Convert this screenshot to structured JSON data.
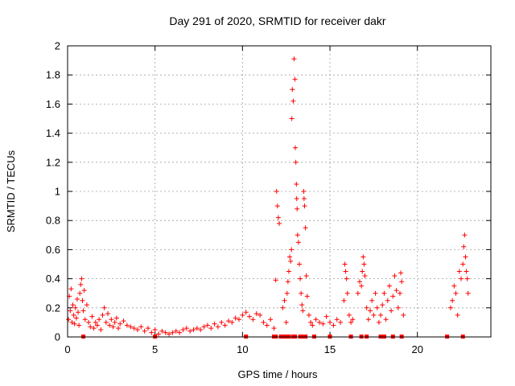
{
  "colors": {
    "series": "#ff0000",
    "frame": "#000000",
    "grid": "#a0a0a0"
  },
  "chart_data": {
    "type": "scatter",
    "title": "Day 291 of 2020, SRMTID for receiver dakr",
    "xlabel": "GPS time / hours",
    "ylabel": "SRMTID / TECUs",
    "xlim": [
      0,
      24.2
    ],
    "ylim": [
      0,
      2
    ],
    "grid": true,
    "x_ticks": [
      0,
      5,
      10,
      15,
      20
    ],
    "x_tick_labels": [
      "0",
      "5",
      "10",
      "15",
      "20"
    ],
    "y_ticks": [
      0,
      0.2,
      0.4,
      0.6,
      0.8,
      1,
      1.2,
      1.4,
      1.6,
      1.8,
      2
    ],
    "y_tick_labels": [
      "0",
      "0.2",
      "0.4",
      "0.6",
      "0.8",
      "1",
      "1.2",
      "1.4",
      "1.6",
      "1.8",
      "2"
    ],
    "series": [
      {
        "name": "SRMTID",
        "marker": "plus",
        "points": [
          [
            0.05,
            0.12
          ],
          [
            0.1,
            0.28
          ],
          [
            0.15,
            0.18
          ],
          [
            0.2,
            0.33
          ],
          [
            0.25,
            0.1
          ],
          [
            0.3,
            0.22
          ],
          [
            0.35,
            0.15
          ],
          [
            0.4,
            0.09
          ],
          [
            0.45,
            0.2
          ],
          [
            0.5,
            0.13
          ],
          [
            0.55,
            0.26
          ],
          [
            0.6,
            0.17
          ],
          [
            0.65,
            0.08
          ],
          [
            0.7,
            0.3
          ],
          [
            0.75,
            0.36
          ],
          [
            0.8,
            0.4
          ],
          [
            0.85,
            0.25
          ],
          [
            0.9,
            0.18
          ],
          [
            0.95,
            0.32
          ],
          [
            1.0,
            0.12
          ],
          [
            1.1,
            0.22
          ],
          [
            1.2,
            0.1
          ],
          [
            1.3,
            0.07
          ],
          [
            1.4,
            0.14
          ],
          [
            1.5,
            0.06
          ],
          [
            1.6,
            0.1
          ],
          [
            1.7,
            0.08
          ],
          [
            1.8,
            0.12
          ],
          [
            1.9,
            0.05
          ],
          [
            2.0,
            0.15
          ],
          [
            2.1,
            0.2
          ],
          [
            2.2,
            0.1
          ],
          [
            2.3,
            0.16
          ],
          [
            2.4,
            0.08
          ],
          [
            2.5,
            0.12
          ],
          [
            2.6,
            0.07
          ],
          [
            2.7,
            0.1
          ],
          [
            2.8,
            0.13
          ],
          [
            2.9,
            0.06
          ],
          [
            3.0,
            0.09
          ],
          [
            3.2,
            0.11
          ],
          [
            3.4,
            0.08
          ],
          [
            3.6,
            0.07
          ],
          [
            3.8,
            0.06
          ],
          [
            4.0,
            0.05
          ],
          [
            4.2,
            0.07
          ],
          [
            4.4,
            0.04
          ],
          [
            4.6,
            0.06
          ],
          [
            4.8,
            0.03
          ],
          [
            5.0,
            0.05
          ],
          [
            5.2,
            0.02
          ],
          [
            5.4,
            0.04
          ],
          [
            5.6,
            0.03
          ],
          [
            5.8,
            0.02
          ],
          [
            6.0,
            0.03
          ],
          [
            6.2,
            0.04
          ],
          [
            6.4,
            0.03
          ],
          [
            6.6,
            0.05
          ],
          [
            6.8,
            0.06
          ],
          [
            7.0,
            0.04
          ],
          [
            7.2,
            0.05
          ],
          [
            7.4,
            0.06
          ],
          [
            7.6,
            0.05
          ],
          [
            7.8,
            0.07
          ],
          [
            8.0,
            0.08
          ],
          [
            8.2,
            0.06
          ],
          [
            8.4,
            0.09
          ],
          [
            8.6,
            0.07
          ],
          [
            8.8,
            0.1
          ],
          [
            9.0,
            0.08
          ],
          [
            9.2,
            0.11
          ],
          [
            9.4,
            0.1
          ],
          [
            9.6,
            0.13
          ],
          [
            9.8,
            0.12
          ],
          [
            10.0,
            0.15
          ],
          [
            10.2,
            0.17
          ],
          [
            10.4,
            0.14
          ],
          [
            10.6,
            0.12
          ],
          [
            10.8,
            0.16
          ],
          [
            11.0,
            0.15
          ],
          [
            11.2,
            0.1
          ],
          [
            11.4,
            0.08
          ],
          [
            11.6,
            0.12
          ],
          [
            11.8,
            0.06
          ],
          [
            11.9,
            0.39
          ],
          [
            11.95,
            1.0
          ],
          [
            12.0,
            0.9
          ],
          [
            12.05,
            0.82
          ],
          [
            12.1,
            0.78
          ],
          [
            12.3,
            0.2
          ],
          [
            12.4,
            0.25
          ],
          [
            12.5,
            0.1
          ],
          [
            12.55,
            0.3
          ],
          [
            12.6,
            0.38
          ],
          [
            12.65,
            0.45
          ],
          [
            12.7,
            0.55
          ],
          [
            12.75,
            0.52
          ],
          [
            12.8,
            0.6
          ],
          [
            12.82,
            1.5
          ],
          [
            12.85,
            1.7
          ],
          [
            12.9,
            1.62
          ],
          [
            12.95,
            1.91
          ],
          [
            13.0,
            1.77
          ],
          [
            13.02,
            1.3
          ],
          [
            13.05,
            1.2
          ],
          [
            13.08,
            1.05
          ],
          [
            13.1,
            0.95
          ],
          [
            13.12,
            0.88
          ],
          [
            13.15,
            0.7
          ],
          [
            13.2,
            0.65
          ],
          [
            13.25,
            0.5
          ],
          [
            13.3,
            0.4
          ],
          [
            13.35,
            0.3
          ],
          [
            13.4,
            0.22
          ],
          [
            13.45,
            0.18
          ],
          [
            13.5,
            1.0
          ],
          [
            13.52,
            0.95
          ],
          [
            13.55,
            0.9
          ],
          [
            13.6,
            0.75
          ],
          [
            13.65,
            0.42
          ],
          [
            13.7,
            0.28
          ],
          [
            13.8,
            0.15
          ],
          [
            13.9,
            0.1
          ],
          [
            14.0,
            0.08
          ],
          [
            14.2,
            0.12
          ],
          [
            14.4,
            0.1
          ],
          [
            14.6,
            0.09
          ],
          [
            14.8,
            0.14
          ],
          [
            15.0,
            0.1
          ],
          [
            15.2,
            0.08
          ],
          [
            15.4,
            0.12
          ],
          [
            15.6,
            0.1
          ],
          [
            15.8,
            0.25
          ],
          [
            15.85,
            0.5
          ],
          [
            15.9,
            0.45
          ],
          [
            15.95,
            0.4
          ],
          [
            16.0,
            0.3
          ],
          [
            16.1,
            0.15
          ],
          [
            16.2,
            0.1
          ],
          [
            16.3,
            0.12
          ],
          [
            16.6,
            0.3
          ],
          [
            16.7,
            0.38
          ],
          [
            16.8,
            0.35
          ],
          [
            16.85,
            0.45
          ],
          [
            16.9,
            0.55
          ],
          [
            16.95,
            0.5
          ],
          [
            17.0,
            0.42
          ],
          [
            17.1,
            0.2
          ],
          [
            17.2,
            0.12
          ],
          [
            17.3,
            0.18
          ],
          [
            17.4,
            0.25
          ],
          [
            17.5,
            0.15
          ],
          [
            17.6,
            0.3
          ],
          [
            17.7,
            0.2
          ],
          [
            17.8,
            0.1
          ],
          [
            17.9,
            0.15
          ],
          [
            18.0,
            0.22
          ],
          [
            18.1,
            0.3
          ],
          [
            18.2,
            0.12
          ],
          [
            18.3,
            0.25
          ],
          [
            18.4,
            0.35
          ],
          [
            18.5,
            0.18
          ],
          [
            18.6,
            0.28
          ],
          [
            18.7,
            0.42
          ],
          [
            18.8,
            0.32
          ],
          [
            18.9,
            0.2
          ],
          [
            19.0,
            0.3
          ],
          [
            19.05,
            0.44
          ],
          [
            19.1,
            0.38
          ],
          [
            19.2,
            0.15
          ],
          [
            21.9,
            0.2
          ],
          [
            22.0,
            0.25
          ],
          [
            22.1,
            0.35
          ],
          [
            22.2,
            0.3
          ],
          [
            22.3,
            0.15
          ],
          [
            22.4,
            0.45
          ],
          [
            22.5,
            0.4
          ],
          [
            22.6,
            0.5
          ],
          [
            22.65,
            0.62
          ],
          [
            22.7,
            0.7
          ],
          [
            22.75,
            0.55
          ],
          [
            22.8,
            0.45
          ],
          [
            22.85,
            0.4
          ],
          [
            22.9,
            0.3
          ]
        ],
        "zero_points": [
          0.9,
          5.0,
          10.2,
          11.8,
          11.9,
          12.2,
          12.35,
          12.5,
          12.55,
          12.65,
          12.9,
          13.0,
          13.3,
          13.45,
          13.55,
          13.6,
          14.1,
          15.0,
          16.2,
          16.8,
          17.1,
          17.9,
          18.0,
          18.1,
          18.6,
          19.1,
          21.7,
          22.6
        ]
      }
    ]
  }
}
